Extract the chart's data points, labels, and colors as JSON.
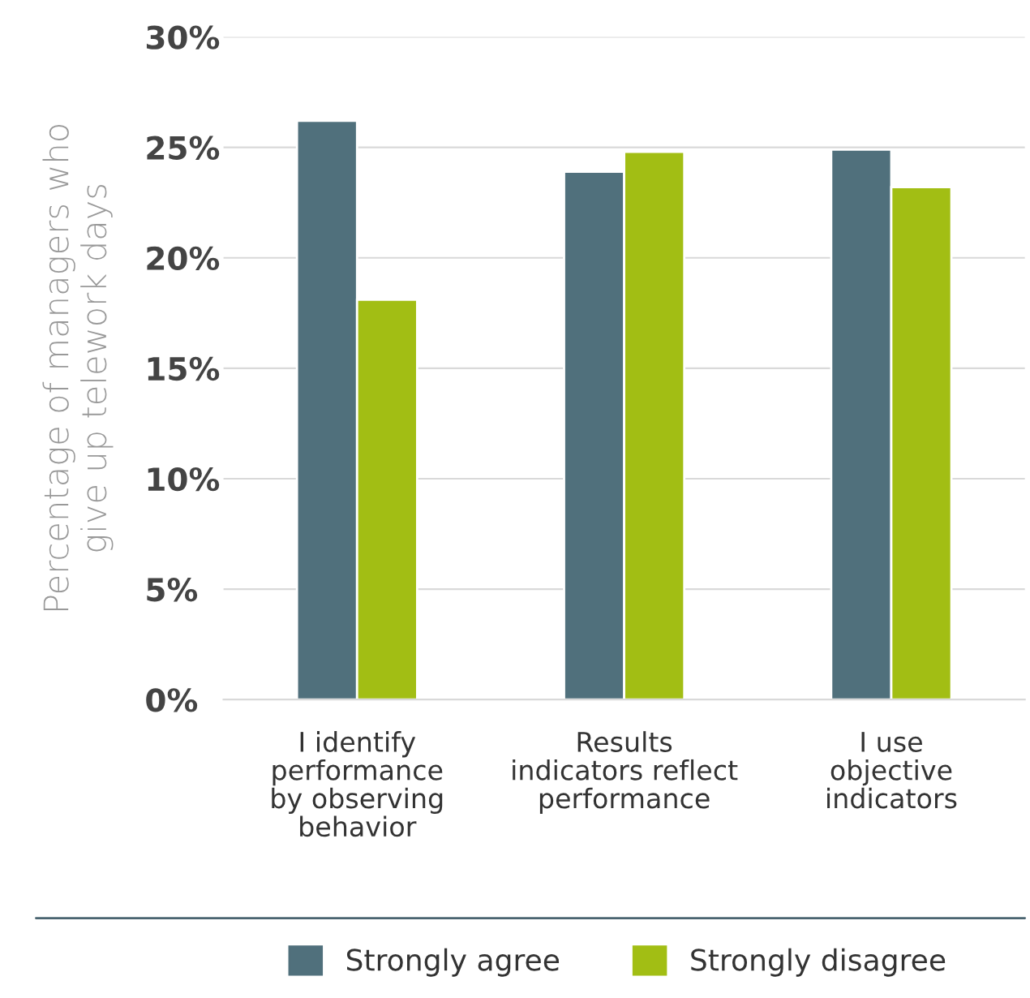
{
  "chart_data": {
    "type": "bar",
    "ylabel": "Percentage of managers who\ngive up telework days",
    "categories": [
      "I identify\nperformance\nby observing\nbehavior",
      "Results\nindicators reflect\nperformance",
      "I use\nobjective\nindicators"
    ],
    "series": [
      {
        "name": "Strongly agree",
        "color": "#50707c",
        "values": [
          26.2,
          23.9,
          24.9
        ]
      },
      {
        "name": "Strongly disagree",
        "color": "#a2be14",
        "values": [
          18.1,
          24.8,
          23.2
        ]
      }
    ],
    "ylim": [
      0,
      30
    ],
    "yticks": [
      {
        "value": 0,
        "label": "0%"
      },
      {
        "value": 5,
        "label": "5%"
      },
      {
        "value": 10,
        "label": "10%"
      },
      {
        "value": 15,
        "label": "15%"
      },
      {
        "value": 20,
        "label": "20%"
      },
      {
        "value": 25,
        "label": "25%"
      },
      {
        "value": 30,
        "label": "30%"
      }
    ],
    "grid": "y",
    "legend": "bottom"
  }
}
